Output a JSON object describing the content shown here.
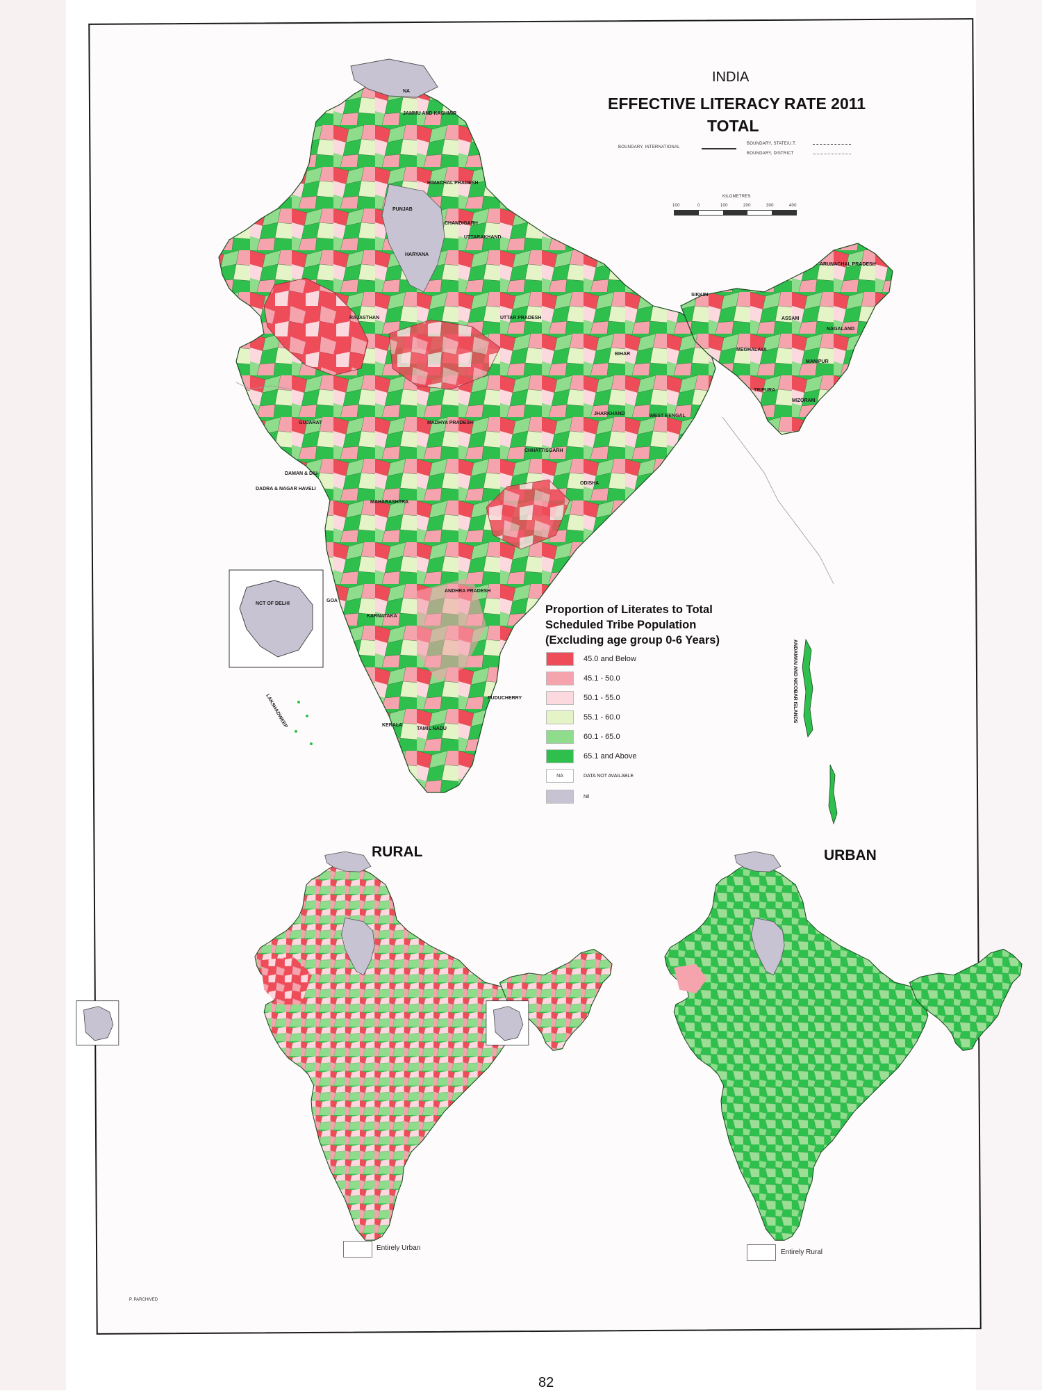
{
  "header": {
    "country": "INDIA",
    "title": "EFFECTIVE LITERACY RATE 2011",
    "subtitle": "TOTAL",
    "boundary_international": "BOUNDARY, INTERNATIONAL",
    "boundary_state": "BOUNDARY, STATE/U.T.",
    "boundary_district": "BOUNDARY, DISTRICT",
    "scale_label": "KILOMETRES",
    "scale_ticks": [
      "100",
      "0",
      "100",
      "200",
      "300",
      "400"
    ]
  },
  "legend": {
    "title_line1": "Proportion of Literates to Total",
    "title_line2": "Scheduled Tribe Population",
    "title_line3": "(Excluding age group 0-6 Years)",
    "classes": [
      {
        "label": "45.0 and Below",
        "color": "#ef4c5a"
      },
      {
        "label": "45.1 - 50.0",
        "color": "#f5a3ad"
      },
      {
        "label": "50.1 - 55.0",
        "color": "#fbd9de"
      },
      {
        "label": "55.1 - 60.0",
        "color": "#e4f4c6"
      },
      {
        "label": "60.1 - 65.0",
        "color": "#8fdc8c"
      },
      {
        "label": "65.1 and Above",
        "color": "#2fbf4d"
      },
      {
        "label": "DATA NOT AVAILABLE",
        "swatch_text": "NA",
        "color": "#ffffff"
      },
      {
        "label": "Nil",
        "color": "#c7c3d3"
      }
    ]
  },
  "main_map": {
    "state_labels": {
      "na": "NA",
      "jk": "JAMMU AND KASHMIR",
      "hp": "HIMACHAL PRADESH",
      "pb": "PUNJAB",
      "ch": "CHANDIGARH",
      "uk": "UTTARAKHAND",
      "hr": "HARYANA",
      "rj": "RAJASTHAN",
      "up": "UTTAR PRADESH",
      "sk": "SIKKIM",
      "ar": "ARUNACHAL PRADESH",
      "as": "ASSAM",
      "nl": "NAGALAND",
      "ml": "MEGHALAYA",
      "mn": "MANIPUR",
      "br": "BIHAR",
      "tr": "TRIPURA",
      "mz": "MIZORAM",
      "gj": "GUJARAT",
      "mp": "MADHYA PRADESH",
      "jh": "JHARKHAND",
      "wb": "WEST BENGAL",
      "cg": "CHHATTISGARH",
      "dd": "DAMAN & DIU",
      "dn": "DADRA & NAGAR HAVELI",
      "od": "ODISHA",
      "mh": "MAHARASHTRA",
      "ap": "ANDHRA PRADESH",
      "ga": "GOA",
      "ka": "KARNATAKA",
      "py": "PUDUCHERRY",
      "kl": "KERALA",
      "tn": "TAMIL NADU",
      "ld": "LAKSHADWEEP",
      "an": "ANDAMAN AND NICOBAR ISLANDS",
      "delhi": "NCT OF DELHI"
    }
  },
  "rural": {
    "title": "RURAL",
    "note": "Entirely Urban"
  },
  "urban": {
    "title": "URBAN",
    "note": "Entirely Rural"
  },
  "credit": "P. PARCHIVED",
  "page_number": "82"
}
